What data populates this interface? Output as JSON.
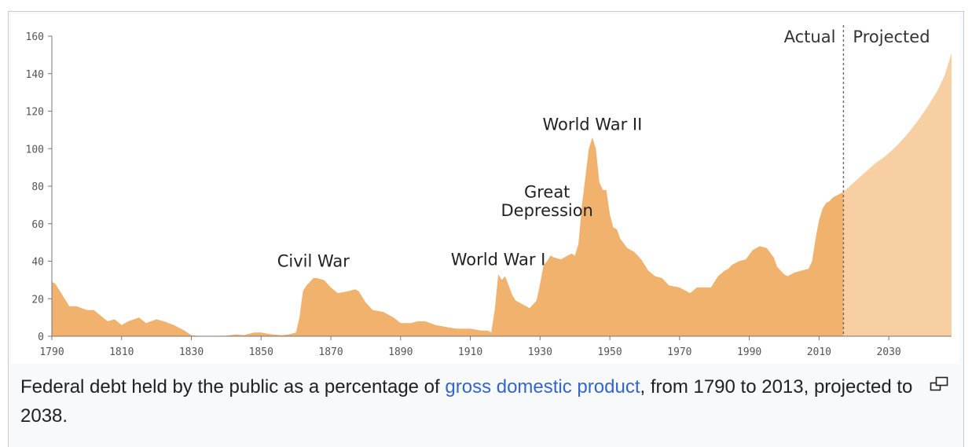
{
  "caption": {
    "before": "Federal debt held by the public as a percentage of ",
    "link": "gross domestic product",
    "after": ", from 1790 to 2013, projected to 2038."
  },
  "chart_data": {
    "type": "area",
    "xlim": [
      1790,
      2048
    ],
    "ylim": [
      0,
      160
    ],
    "x_ticks": [
      1790,
      1810,
      1830,
      1850,
      1870,
      1890,
      1910,
      1930,
      1950,
      1970,
      1990,
      2010,
      2030
    ],
    "y_ticks": [
      0,
      20,
      40,
      60,
      80,
      100,
      120,
      140,
      160
    ],
    "grid": false,
    "colors": {
      "actual": "#f0b26c",
      "projected": "#f7cfa3",
      "divider": "#666666"
    },
    "divider_x": 2017,
    "period_labels": {
      "actual": "Actual",
      "projected": "Projected"
    },
    "series": [
      {
        "name": "Actual",
        "x": [
          1790,
          1791,
          1793,
          1795,
          1797,
          1800,
          1802,
          1804,
          1806,
          1808,
          1810,
          1812,
          1815,
          1817,
          1820,
          1822,
          1825,
          1828,
          1830,
          1832,
          1835,
          1840,
          1843,
          1845,
          1848,
          1850,
          1853,
          1856,
          1858,
          1860,
          1861,
          1862,
          1863,
          1865,
          1866,
          1868,
          1870,
          1872,
          1875,
          1877,
          1878,
          1880,
          1882,
          1885,
          1888,
          1890,
          1893,
          1895,
          1897,
          1900,
          1903,
          1906,
          1910,
          1913,
          1915,
          1916,
          1917,
          1918,
          1919,
          1920,
          1921,
          1922,
          1923,
          1925,
          1927,
          1929,
          1930,
          1931,
          1932,
          1933,
          1934,
          1936,
          1938,
          1939,
          1940,
          1941,
          1942,
          1943,
          1944,
          1945,
          1946,
          1947,
          1948,
          1949,
          1950,
          1951,
          1952,
          1953,
          1955,
          1956,
          1957,
          1959,
          1961,
          1963,
          1965,
          1967,
          1970,
          1973,
          1975,
          1977,
          1979,
          1981,
          1983,
          1984,
          1985,
          1987,
          1989,
          1991,
          1993,
          1995,
          1997,
          1998,
          2000,
          2001,
          2003,
          2005,
          2007,
          2008,
          2009,
          2010,
          2011,
          2012,
          2013,
          2014,
          2015,
          2016,
          2017
        ],
        "values": [
          29,
          28,
          22,
          16,
          16,
          14,
          14,
          11,
          8,
          9,
          6,
          8,
          10,
          7,
          9,
          8,
          6,
          3,
          0.5,
          0.2,
          0.1,
          0.3,
          1,
          0.6,
          2,
          2,
          1,
          0.5,
          1,
          2,
          10,
          24,
          27,
          31,
          31,
          30,
          26,
          23,
          24,
          25,
          24,
          18,
          14,
          13,
          10,
          7,
          7,
          8,
          8,
          6,
          5,
          4,
          4,
          3,
          3,
          2,
          14,
          33,
          30,
          32,
          27,
          22,
          19,
          17,
          15,
          19,
          28,
          38,
          40,
          43,
          42,
          41,
          43,
          44,
          43,
          49,
          70,
          85,
          100,
          106,
          100,
          82,
          78,
          78,
          65,
          58,
          57,
          52,
          47,
          46,
          45,
          41,
          35,
          32,
          31,
          27,
          26,
          23,
          26,
          26,
          26,
          32,
          35,
          36,
          38,
          40,
          41,
          46,
          48,
          47,
          42,
          37,
          33,
          32,
          34,
          35,
          36,
          40,
          52,
          62,
          68,
          71,
          72,
          74,
          75,
          76,
          77
        ]
      },
      {
        "name": "Projected",
        "x": [
          2017,
          2020,
          2023,
          2026,
          2029,
          2032,
          2035,
          2038,
          2041,
          2044,
          2046,
          2048
        ],
        "values": [
          77,
          82,
          87,
          92,
          96,
          101,
          107,
          114,
          122,
          131,
          139,
          151
        ]
      }
    ],
    "annotations": [
      {
        "text": "Civil War",
        "x": 1865,
        "y": 37
      },
      {
        "text": "World War I",
        "x": 1918,
        "y": 38
      },
      {
        "text": "Great",
        "x": 1932,
        "y": 74
      },
      {
        "text": "Depression",
        "x": 1932,
        "y": 64
      },
      {
        "text": "World War II",
        "x": 1945,
        "y": 110
      }
    ]
  }
}
